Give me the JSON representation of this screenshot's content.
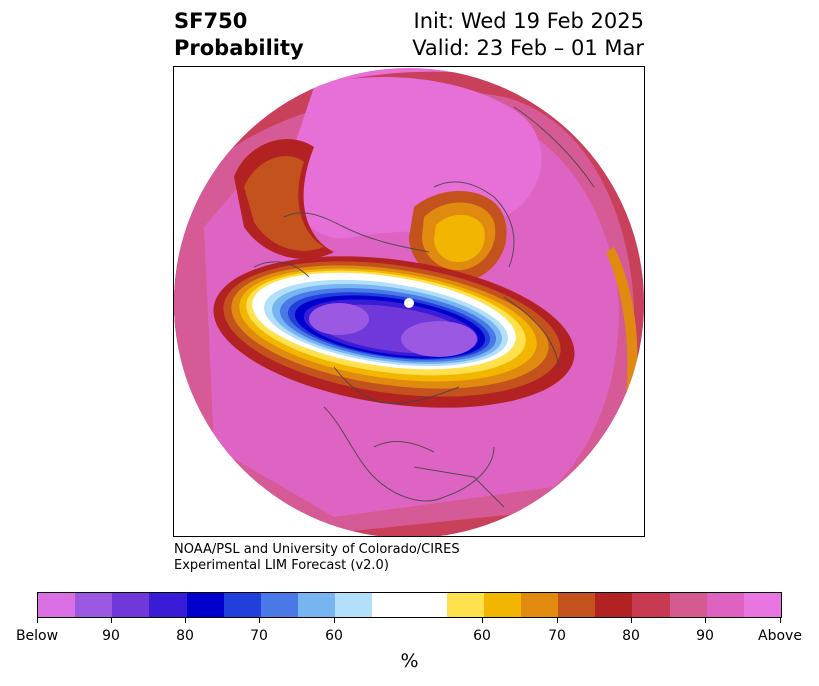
{
  "header": {
    "title_line1": "SF750",
    "title_line2": "Probability",
    "init": "Init: Wed 19 Feb 2025",
    "valid": "Valid: 23 Feb – 01 Mar"
  },
  "credit": {
    "line1": "NOAA/PSL and University of Colorado/CIRES",
    "line2": "Experimental LIM Forecast (v2.0)"
  },
  "colorbar": {
    "unit": "%",
    "colors": [
      "#da70e3",
      "#9b59e3",
      "#7038d8",
      "#3a1bd6",
      "#0000cd",
      "#2140db",
      "#4a78e6",
      "#77b5f2",
      "#b2e0fb",
      "#ffffff",
      "#ffe14d",
      "#f3b600",
      "#e08a10",
      "#c4521c",
      "#b22222",
      "#c83a52",
      "#d45a90",
      "#de62c0",
      "#e975e0"
    ],
    "ticks": [
      "Below",
      "90",
      "80",
      "70",
      "60",
      "60",
      "70",
      "80",
      "90",
      "Above"
    ]
  },
  "map": {
    "projection": "north-polar-stereographic",
    "field": "SF750 probability",
    "anomaly_above_color": "#e670d8",
    "anomaly_below_color": "#2a10d0"
  }
}
